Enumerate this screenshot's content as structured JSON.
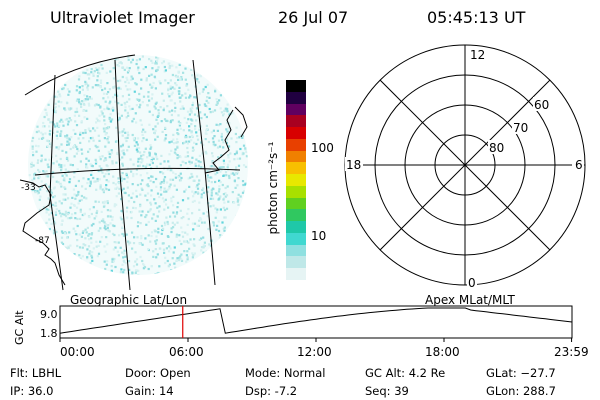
{
  "header": {
    "title": "Ultraviolet Imager",
    "date": "26 Jul 07",
    "time": "05:45:13 UT"
  },
  "map_panel": {
    "lat_labels": [
      "-33",
      "-87"
    ]
  },
  "colorbar": {
    "unit_label": "photon cm⁻²s⁻¹",
    "ticks": [
      "100",
      "10"
    ],
    "colors": [
      "#e6f4f4",
      "#bfe8e8",
      "#8fe0e0",
      "#40d8d0",
      "#1fc8a8",
      "#30c860",
      "#60d020",
      "#a8e000",
      "#e8e800",
      "#f8c000",
      "#f08000",
      "#e84000",
      "#d80000",
      "#a80020",
      "#600060",
      "#200040",
      "#000000"
    ]
  },
  "polar": {
    "mlt_labels": {
      "top": "12",
      "left": "18",
      "right": "6",
      "bottom": "0"
    },
    "lat_labels": [
      "60",
      "70",
      "80"
    ]
  },
  "timeline": {
    "left_label": "Geographic Lat/Lon",
    "right_label": "Apex MLat/MLT",
    "ylabel": "GC Alt",
    "ymax": "9.0",
    "ymin": "1.8",
    "ticks": [
      "00:00",
      "06:00",
      "12:00",
      "18:00",
      "23:59"
    ],
    "marker_time_hours": 5.754,
    "marker_color": "#e00000"
  },
  "info": {
    "filter": "Flt: LBHL",
    "ip": "IP: 36.0",
    "door": "Door: Open",
    "gain": "Gain: 14",
    "mode": "Mode: Normal",
    "dsp": "Dsp:    -7.2",
    "gc_alt": "GC Alt: 4.2 Re",
    "seq": "Seq: 39",
    "glat": "GLat: −27.7",
    "glon": "GLon: 288.7"
  }
}
